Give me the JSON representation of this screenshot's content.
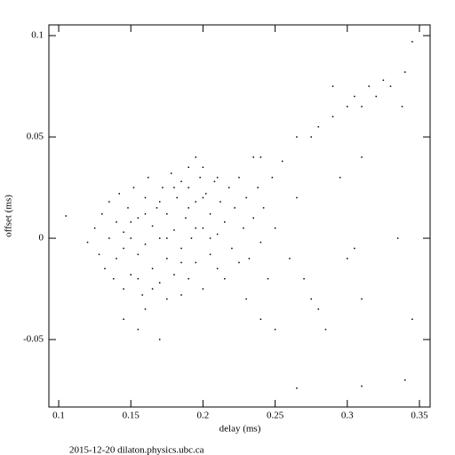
{
  "chart_data": {
    "type": "scatter",
    "x_label": "delay (ms)",
    "y_label": "offset (ms)",
    "footer": "2015-12-20  dilaton.physics.ubc.ca",
    "color": "#000000",
    "xlim": [
      0.0932,
      0.3574
    ],
    "ylim": [
      -0.0833,
      0.1053
    ],
    "xticks": [
      0.1,
      0.15,
      0.2,
      0.25,
      0.3,
      0.35
    ],
    "yticks": [
      -0.05,
      0,
      0.05,
      0.1
    ],
    "x": [
      0.125,
      0.128,
      0.13,
      0.132,
      0.135,
      0.135,
      0.138,
      0.14,
      0.14,
      0.142,
      0.145,
      0.145,
      0.148,
      0.15,
      0.15,
      0.152,
      0.155,
      0.155,
      0.158,
      0.16,
      0.16,
      0.162,
      0.165,
      0.165,
      0.168,
      0.17,
      0.17,
      0.172,
      0.175,
      0.175,
      0.178,
      0.18,
      0.18,
      0.182,
      0.185,
      0.185,
      0.188,
      0.19,
      0.19,
      0.192,
      0.195,
      0.195,
      0.198,
      0.2,
      0.2,
      0.202,
      0.205,
      0.205,
      0.208,
      0.21,
      0.21,
      0.212,
      0.215,
      0.215,
      0.218,
      0.22,
      0.222,
      0.225,
      0.225,
      0.228,
      0.23,
      0.232,
      0.235,
      0.238,
      0.24,
      0.242,
      0.245,
      0.248,
      0.25,
      0.255,
      0.26,
      0.265,
      0.145,
      0.15,
      0.155,
      0.16,
      0.165,
      0.17,
      0.175,
      0.18,
      0.185,
      0.19,
      0.195,
      0.2,
      0.205,
      0.21,
      0.175,
      0.185,
      0.16,
      0.195,
      0.2,
      0.19,
      0.105,
      0.12,
      0.145,
      0.155,
      0.17,
      0.23,
      0.24,
      0.25,
      0.265,
      0.27,
      0.275,
      0.28,
      0.285,
      0.265,
      0.275,
      0.28,
      0.29,
      0.3,
      0.305,
      0.31,
      0.315,
      0.32,
      0.33,
      0.34,
      0.345,
      0.338,
      0.31,
      0.295,
      0.3,
      0.31,
      0.31,
      0.34,
      0.345,
      0.335,
      0.305,
      0.29,
      0.325,
      0.235,
      0.24
    ],
    "values": [
      0.005,
      -0.008,
      0.012,
      -0.015,
      0.0,
      0.018,
      -0.02,
      0.008,
      -0.01,
      0.022,
      -0.025,
      0.003,
      0.015,
      -0.018,
      0.0,
      0.025,
      -0.008,
      0.01,
      -0.028,
      0.02,
      -0.003,
      0.03,
      -0.015,
      0.006,
      0.015,
      -0.022,
      0.0,
      0.025,
      -0.01,
      0.012,
      0.032,
      -0.018,
      0.004,
      0.02,
      -0.005,
      0.028,
      0.01,
      -0.02,
      0.035,
      0.0,
      0.018,
      -0.012,
      0.03,
      0.005,
      -0.025,
      0.022,
      -0.008,
      0.012,
      0.028,
      -0.015,
      0.002,
      0.018,
      -0.02,
      0.008,
      0.025,
      -0.005,
      0.015,
      -0.012,
      0.03,
      0.005,
      0.02,
      -0.01,
      0.01,
      0.025,
      -0.002,
      0.015,
      -0.02,
      0.03,
      0.005,
      0.038,
      -0.01,
      0.02,
      -0.005,
      0.008,
      -0.02,
      0.012,
      -0.025,
      0.018,
      0.0,
      0.025,
      -0.012,
      0.015,
      0.005,
      0.02,
      0.0,
      0.03,
      -0.03,
      -0.028,
      -0.035,
      0.04,
      0.035,
      0.025,
      0.011,
      -0.002,
      -0.04,
      -0.045,
      -0.05,
      -0.03,
      -0.04,
      -0.045,
      -0.074,
      -0.02,
      -0.03,
      -0.035,
      -0.045,
      0.05,
      0.05,
      0.055,
      0.06,
      0.065,
      0.07,
      0.065,
      0.075,
      0.07,
      0.075,
      0.082,
      0.097,
      0.065,
      0.04,
      0.03,
      -0.01,
      -0.03,
      -0.073,
      -0.07,
      -0.04,
      0.0,
      -0.005,
      0.075,
      0.078,
      0.04,
      0.04
    ]
  }
}
